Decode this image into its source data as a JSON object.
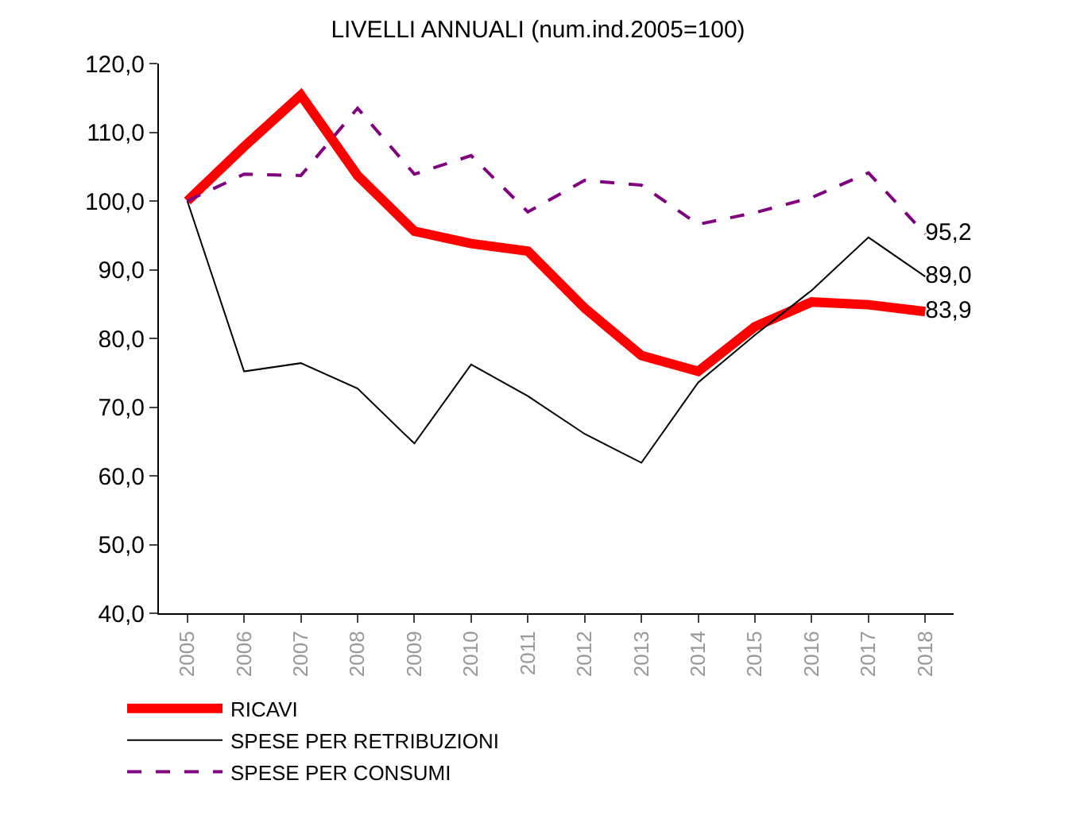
{
  "chart_data": {
    "type": "line",
    "title": "LIVELLI ANNUALI (num.ind.2005=100)",
    "categories": [
      "2005",
      "2006",
      "2007",
      "2008",
      "2009",
      "2010",
      "2011",
      "2012",
      "2013",
      "2014",
      "2015",
      "2016",
      "2017",
      "2018"
    ],
    "series": [
      {
        "name": "RICAVI",
        "color": "#ff0000",
        "line_style": "solid",
        "values": [
          100,
          107.9,
          115.4,
          103.7,
          95.6,
          93.8,
          92.7,
          84.4,
          77.5,
          75.2,
          81.7,
          85.3,
          84.9,
          83.9
        ],
        "value_labels": [
          null,
          null,
          null,
          null,
          null,
          null,
          null,
          null,
          null,
          null,
          null,
          null,
          null,
          "83,9"
        ]
      },
      {
        "name": "SPESE PER RETRIBUZIONI",
        "color": "#000000",
        "line_style": "solid",
        "values": [
          100,
          75.2,
          76.4,
          72.7,
          64.7,
          76.2,
          71.6,
          66.1,
          61.9,
          73.6,
          80.5,
          87.0,
          94.7,
          89.0
        ],
        "value_labels": [
          null,
          null,
          null,
          null,
          null,
          null,
          null,
          null,
          null,
          null,
          null,
          null,
          null,
          "89,0"
        ]
      },
      {
        "name": "SPESE PER CONSUMI",
        "color": "#800080",
        "line_style": "dashed",
        "values": [
          100,
          103.9,
          103.7,
          113.5,
          103.9,
          106.6,
          98.4,
          103.0,
          102.3,
          96.6,
          98.3,
          100.5,
          104.1,
          95.2
        ],
        "value_labels": [
          null,
          null,
          null,
          null,
          null,
          null,
          null,
          null,
          null,
          null,
          null,
          null,
          null,
          "95,2"
        ]
      }
    ],
    "ylim": [
      40,
      120
    ],
    "yticks": [
      {
        "value": 40,
        "label": "40,0"
      },
      {
        "value": 50,
        "label": "50,0"
      },
      {
        "value": 60,
        "label": "60,0"
      },
      {
        "value": 70,
        "label": "70,0"
      },
      {
        "value": 80,
        "label": "80,0"
      },
      {
        "value": 90,
        "label": "90,0"
      },
      {
        "value": 100,
        "label": "100,0"
      },
      {
        "value": 110,
        "label": "110,0"
      },
      {
        "value": 120,
        "label": "120,0"
      }
    ],
    "legend": "bottom left",
    "marker": "none"
  }
}
